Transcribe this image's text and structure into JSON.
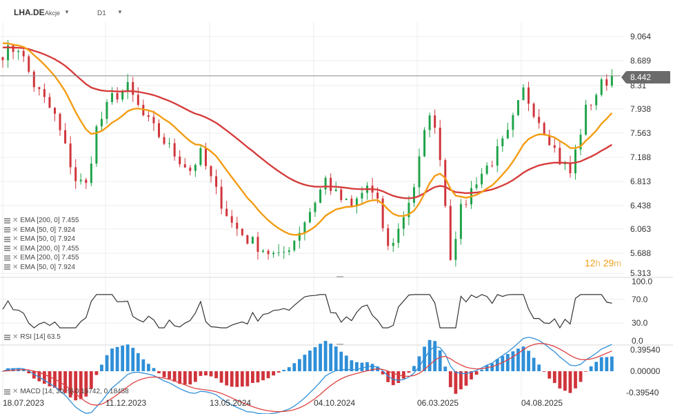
{
  "header": {
    "symbol": "LHA.DE",
    "market": "Akcje",
    "interval": "D1"
  },
  "price_tag": "8.442",
  "price_axis": [
    "9.064",
    "8.689",
    "8.31",
    "7.938",
    "7.563",
    "7.188",
    "6.813",
    "6.438",
    "6.063",
    "5.688",
    "5.313"
  ],
  "rsi_axis": [
    "100.0",
    "70.0",
    "30.0",
    "0.0"
  ],
  "macd_axis": [
    "0.39540",
    "0.00000",
    "-0.39540"
  ],
  "x_axis": [
    "18.07.2023",
    "11.12.2023",
    "13.05.2024",
    "04.10.2024",
    "06.03.2025",
    "04.08.2025"
  ],
  "legend": [
    "EMA [200, 0] 7.455",
    "EMA [50, 0] 7.924",
    "EMA [50, 0] 7.924",
    "EMA [200, 0] 7.455",
    "EMA [200, 0] 7.455",
    "EMA [50, 0] 7.924"
  ],
  "rsi_legend": "RSI [14] 63.5",
  "macd_legend": "MACD [14, 30, 9] 0.16742, 0.18458",
  "timer": {
    "hours": "12",
    "h": "h",
    "minutes": "29",
    "m": "m"
  },
  "colors": {
    "up": "#1fa34a",
    "down": "#d0343b",
    "ema50": "#f39c12",
    "ema200": "#d63c3c",
    "rsi": "#333333",
    "macd_hist_up": "#2f8fd8",
    "macd_hist_down": "#d0343b",
    "macd_line": "#2f8fd8",
    "signal_line": "#e04040"
  },
  "chart_data": [
    {
      "type": "candlestick",
      "title": "LHA.DE",
      "timeframe": "D1",
      "ylim": [
        5.313,
        9.3
      ],
      "last_price": 8.442,
      "x_labels": [
        "18.07.2023",
        "11.12.2023",
        "13.05.2024",
        "04.10.2024",
        "06.03.2025",
        "04.08.2025"
      ],
      "close_path": [
        [
          0,
          8.8
        ],
        [
          3,
          8.9
        ],
        [
          6,
          8.3
        ],
        [
          10,
          7.8
        ],
        [
          14,
          6.8
        ],
        [
          16,
          6.7
        ],
        [
          18,
          7.6
        ],
        [
          21,
          8.1
        ],
        [
          24,
          8.25
        ],
        [
          27,
          7.8
        ],
        [
          30,
          7.5
        ],
        [
          33,
          7.2
        ],
        [
          36,
          6.95
        ],
        [
          38,
          7.2
        ],
        [
          41,
          6.6
        ],
        [
          44,
          6.1
        ],
        [
          47,
          5.85
        ],
        [
          50,
          5.7
        ],
        [
          53,
          5.55
        ],
        [
          56,
          5.85
        ],
        [
          59,
          6.3
        ],
        [
          62,
          6.8
        ],
        [
          64,
          6.55
        ],
        [
          67,
          6.35
        ],
        [
          70,
          6.7
        ],
        [
          72,
          6.4
        ],
        [
          74,
          5.7
        ],
        [
          76,
          6.0
        ],
        [
          79,
          6.7
        ],
        [
          82,
          7.9
        ],
        [
          84,
          7.2
        ],
        [
          86,
          5.6
        ],
        [
          88,
          6.3
        ],
        [
          91,
          6.8
        ],
        [
          94,
          7.1
        ],
        [
          97,
          7.5
        ],
        [
          100,
          8.2
        ],
        [
          102,
          7.9
        ],
        [
          105,
          7.45
        ],
        [
          107,
          7.1
        ],
        [
          109,
          6.9
        ],
        [
          112,
          7.9
        ],
        [
          115,
          8.3
        ],
        [
          117,
          8.44
        ]
      ],
      "series": [
        {
          "name": "EMA [50, 0]",
          "last": 7.924
        },
        {
          "name": "EMA [200, 0]",
          "last": 7.455
        }
      ]
    },
    {
      "type": "line",
      "title": "RSI [14]",
      "ylim": [
        0,
        100
      ],
      "levels": [
        30,
        70
      ],
      "last": 63.5
    },
    {
      "type": "bar",
      "title": "MACD [14, 30, 9]",
      "ylim": [
        -0.3954,
        0.3954
      ],
      "macd_last": 0.16742,
      "signal_last": 0.18458
    }
  ]
}
